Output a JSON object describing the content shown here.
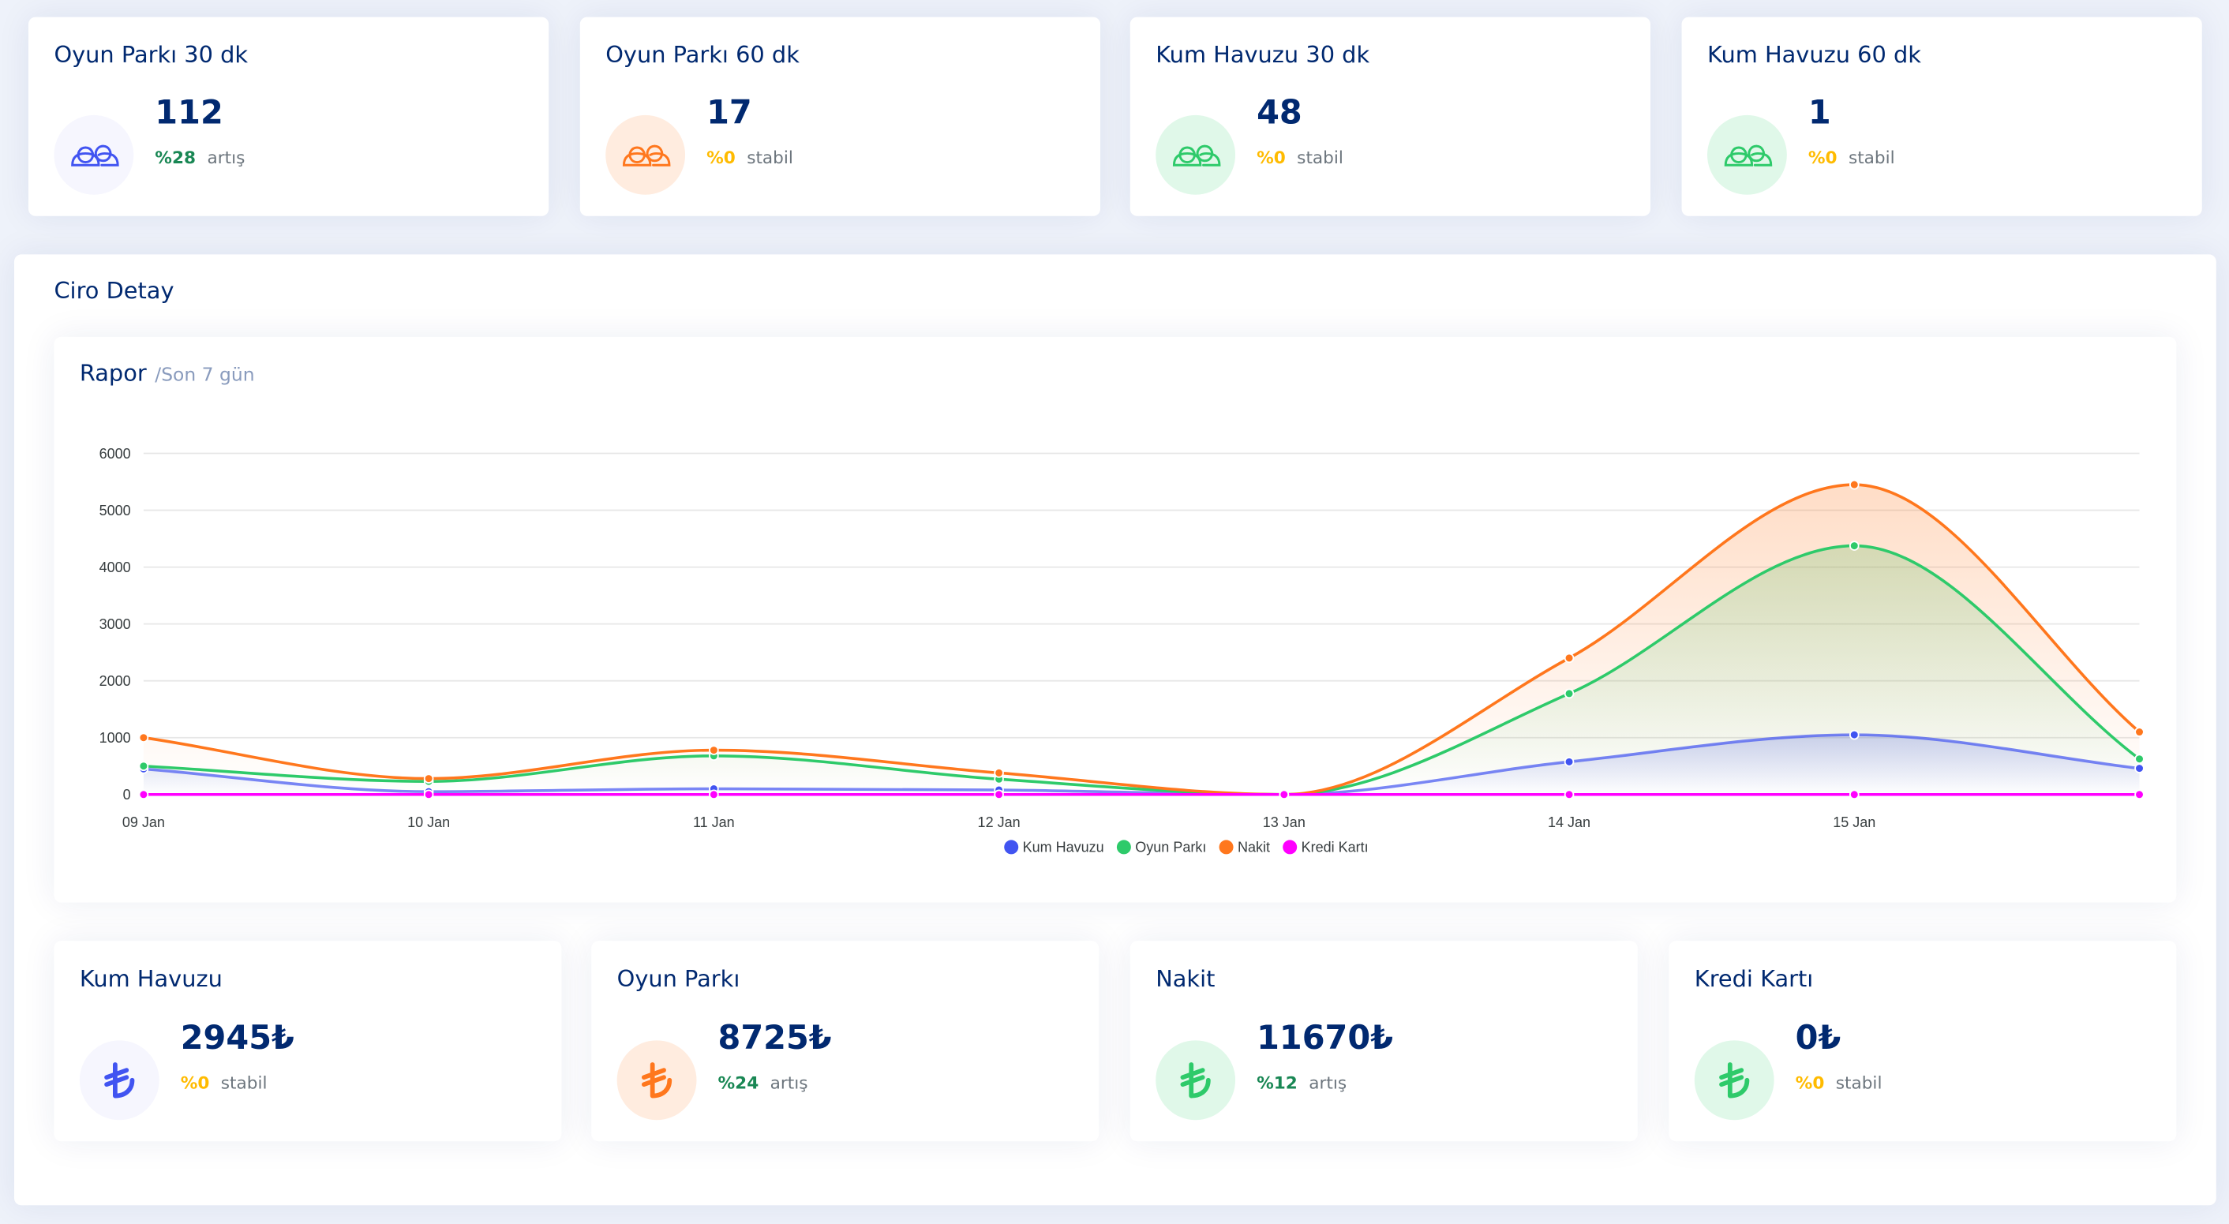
{
  "stats": [
    {
      "title": "Oyun Parkı 30 dk",
      "value": 112,
      "change": "%28",
      "status": "artış",
      "color": "#4154f1",
      "bg": "#f6f6fe",
      "change_color": "#198754"
    },
    {
      "title": "Oyun Parkı 60 dk",
      "value": 17,
      "change": "%0",
      "status": "stabil",
      "color": "#ff771d",
      "bg": "#ffecdf",
      "change_color": "#ffbb00"
    },
    {
      "title": "Kum Havuzu 30 dk",
      "value": 48,
      "change": "%0",
      "status": "stabil",
      "color": "#2eca6a",
      "bg": "#e0f8e9",
      "change_color": "#ffbb00"
    },
    {
      "title": "Kum Havuzu 60 dk",
      "value": 1,
      "change": "%0",
      "status": "stabil",
      "color": "#2eca6a",
      "bg": "#e0f8e9",
      "change_color": "#ffbb00"
    }
  ],
  "revenue": {
    "title": "Ciro Detay",
    "report_title": "Rapor",
    "report_subtitle": "/Son 7 gün"
  },
  "chart_data": {
    "type": "line",
    "categories": [
      "09 Jan",
      "10 Jan",
      "11 Jan",
      "12 Jan",
      "13 Jan",
      "14 Jan",
      "15 Jan",
      null
    ],
    "series": [
      {
        "name": "Kum Havuzu",
        "color": "#4154f1",
        "values": [
          450,
          50,
          100,
          80,
          0,
          575,
          1050,
          460
        ]
      },
      {
        "name": "Oyun Parkı",
        "color": "#2eca6a",
        "values": [
          500,
          230,
          680,
          270,
          0,
          1775,
          4375,
          625
        ]
      },
      {
        "name": "Nakit",
        "color": "#ff771d",
        "values": [
          1000,
          280,
          780,
          380,
          0,
          2400,
          5450,
          1100
        ]
      },
      {
        "name": "Kredi Kartı",
        "color": "#ff00ff",
        "values": [
          0,
          0,
          0,
          0,
          0,
          0,
          0,
          0
        ]
      }
    ],
    "ylim": [
      0,
      6000
    ],
    "yticks": [
      0,
      1000,
      2000,
      3000,
      4000,
      5000,
      6000
    ],
    "grid": true,
    "legend": "bottom"
  },
  "totals": [
    {
      "title": "Kum Havuzu",
      "value": "2945₺",
      "change": "%0",
      "status": "stabil",
      "color": "#4154f1",
      "bg": "#f6f6fe",
      "change_color": "#ffbb00"
    },
    {
      "title": "Oyun Parkı",
      "value": "8725₺",
      "change": "%24",
      "status": "artış",
      "color": "#ff771d",
      "bg": "#ffecdf",
      "change_color": "#198754"
    },
    {
      "title": "Nakit",
      "value": "11670₺",
      "change": "%12",
      "status": "artış",
      "color": "#2eca6a",
      "bg": "#e0f8e9",
      "change_color": "#198754"
    },
    {
      "title": "Kredi Kartı",
      "value": "0₺",
      "change": "%0",
      "status": "stabil",
      "color": "#2eca6a",
      "bg": "#e0f8e9",
      "change_color": "#ffbb00"
    }
  ]
}
